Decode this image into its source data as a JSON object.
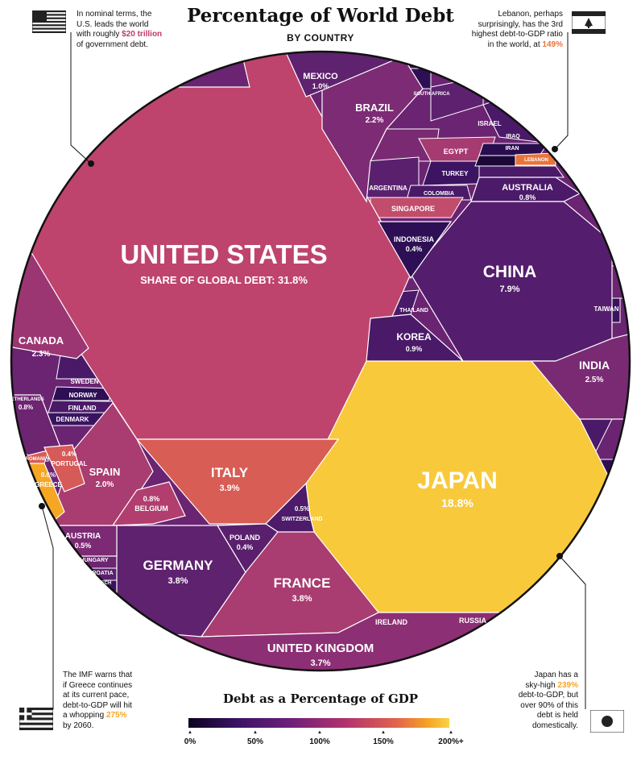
{
  "header": {
    "title": "Percentage of World Debt",
    "subtitle": "BY COUNTRY"
  },
  "notes": {
    "us": [
      "In nominal terms, the",
      "U.S. leads the world",
      "with roughly ",
      "$20 trillion",
      "of government debt."
    ],
    "lebanon": [
      "Lebanon, perhaps",
      "surprisingly, has the 3rd",
      "highest debt-to-GDP ratio",
      "in the world, at ",
      "149%"
    ],
    "greece": [
      "The IMF warns that",
      "if Greece continues",
      "at its current pace,",
      "debt-to-GDP will hit",
      "a whopping ",
      "275%",
      "by 2060."
    ],
    "japan": [
      "Japan has a",
      "sky-high ",
      "239%",
      "debt-to-GDP, but",
      "over 90% of this",
      "debt is held",
      "domestically."
    ]
  },
  "legend": {
    "title": "Debt as a Percentage of GDP",
    "ticks": [
      "0%",
      "50%",
      "100%",
      "150%",
      "200%+"
    ]
  },
  "colors": {
    "us_highlight": "#c0396b",
    "lebanon_highlight": "#e8743b",
    "greece_highlight": "#f5a623",
    "japan_highlight": "#f5a623"
  },
  "chart_data": {
    "type": "voronoi-treemap",
    "title": "Percentage of World Debt",
    "subtitle": "BY COUNTRY",
    "value_label": "SHARE OF GLOBAL DEBT",
    "color_metric": "Debt as a Percentage of GDP",
    "color_scale": [
      "0%",
      "50%",
      "100%",
      "150%",
      "200%+"
    ],
    "countries": [
      {
        "name": "UNITED STATES",
        "share": 31.8,
        "label": "SHARE OF GLOBAL DEBT: 31.8%",
        "color": "#be446d"
      },
      {
        "name": "JAPAN",
        "share": 18.8,
        "label": "18.8%",
        "color": "#f8c93a"
      },
      {
        "name": "CHINA",
        "share": 7.9,
        "label": "7.9%",
        "color": "#551d6e"
      },
      {
        "name": "ITALY",
        "share": 3.9,
        "label": "3.9%",
        "color": "#d85d55"
      },
      {
        "name": "GERMANY",
        "share": 3.8,
        "label": "3.8%",
        "color": "#5f226f"
      },
      {
        "name": "FRANCE",
        "share": 3.8,
        "label": "3.8%",
        "color": "#a93c70"
      },
      {
        "name": "UNITED KINGDOM",
        "share": 3.7,
        "label": "3.7%",
        "color": "#8c2f74"
      },
      {
        "name": "INDIA",
        "share": 2.5,
        "label": "2.5%",
        "color": "#7a2a73"
      },
      {
        "name": "CANADA",
        "share": 2.3,
        "label": "2.3%",
        "color": "#9b3672"
      },
      {
        "name": "BRAZIL",
        "share": 2.2,
        "label": "2.2%",
        "color": "#7d2b74"
      },
      {
        "name": "SPAIN",
        "share": 2.0,
        "label": "2.0%",
        "color": "#a93c70"
      },
      {
        "name": "MEXICO",
        "share": 1.0,
        "label": "1.0%",
        "color": "#5e226f"
      },
      {
        "name": "KOREA",
        "share": 0.9,
        "label": "0.9%",
        "color": "#4a1968"
      },
      {
        "name": "AUSTRALIA",
        "share": 0.8,
        "label": "0.8%",
        "color": "#4b1a69"
      },
      {
        "name": "NETHERLANDS",
        "share": 0.8,
        "label": "0.8%",
        "color": "#6d2471"
      },
      {
        "name": "BELGIUM",
        "share": 0.8,
        "label": "0.8%",
        "color": "#b13e6f"
      },
      {
        "name": "GREECE",
        "share": 0.6,
        "label": "0.6%",
        "color": "#f5a623"
      },
      {
        "name": "SWITZERLAND",
        "share": 0.5,
        "label": "0.5%",
        "color": "#4d1b69"
      },
      {
        "name": "AUSTRIA",
        "share": 0.5,
        "label": "0.5%",
        "color": "#7b2a73"
      },
      {
        "name": "INDONESIA",
        "share": 0.4,
        "label": "0.4%",
        "color": "#2e0f55"
      },
      {
        "name": "PORTUGAL",
        "share": 0.4,
        "label": "0.4%",
        "color": "#d55a58"
      },
      {
        "name": "POLAND",
        "share": 0.4,
        "label": "0.4%",
        "color": "#5a206d"
      },
      {
        "name": "SINGAPORE",
        "color": "#c24c6b"
      },
      {
        "name": "EGYPT",
        "color": "#a63b72"
      },
      {
        "name": "TURKEY",
        "color": "#3d1462"
      },
      {
        "name": "ARGENTINA",
        "color": "#5a206e"
      },
      {
        "name": "COLOMBIA",
        "color": "#4a1968"
      },
      {
        "name": "SOUTH AFRICA",
        "color": "#4f1b6a"
      },
      {
        "name": "ISRAEL",
        "color": "#5d216f"
      },
      {
        "name": "IRAQ",
        "color": "#4a1968"
      },
      {
        "name": "IRAN",
        "color": "#2a0d4e"
      },
      {
        "name": "LEBANON",
        "color": "#e8743b"
      },
      {
        "name": "THAILAND",
        "color": "#4a1968"
      },
      {
        "name": "TAIWAN",
        "color": "#3a1360"
      },
      {
        "name": "SWEDEN",
        "color": "#4a1968"
      },
      {
        "name": "NORWAY",
        "color": "#2e0f55"
      },
      {
        "name": "FINLAND",
        "color": "#4a1968"
      },
      {
        "name": "DENMARK",
        "color": "#3a1360"
      },
      {
        "name": "ROMANIA",
        "color": "#3a1360"
      },
      {
        "name": "HUNGARY",
        "color": "#6d2471"
      },
      {
        "name": "CROATIA",
        "color": "#5a206d"
      },
      {
        "name": "CZECH",
        "color": "#3a1360"
      },
      {
        "name": "IRELAND",
        "color": "#6d2471"
      },
      {
        "name": "RUSSIA",
        "color": "#1c0838"
      }
    ]
  }
}
